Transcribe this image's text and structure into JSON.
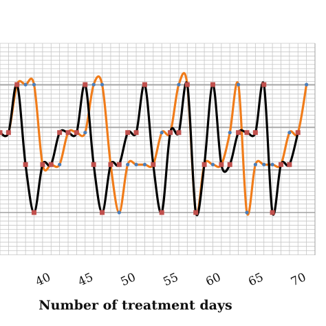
{
  "chart_data": {
    "type": "line",
    "title": "",
    "xlabel": "Number  of treatment days",
    "ylabel": "",
    "xlim": [
      35,
      72
    ],
    "ylim": [
      0,
      10
    ],
    "xticks": [
      40,
      45,
      50,
      55,
      60,
      65,
      70
    ],
    "tick_labels": [
      "40",
      "45",
      "50",
      "55",
      "60",
      "65",
      "70"
    ],
    "grid": true,
    "series": [
      {
        "color": "#f07c1a",
        "points": [
          [
            35,
            5
          ],
          [
            36,
            5
          ],
          [
            37,
            8
          ],
          [
            38,
            8
          ],
          [
            39,
            8
          ],
          [
            40,
            3
          ],
          [
            41,
            3
          ],
          [
            42,
            3
          ],
          [
            43,
            5
          ],
          [
            44,
            5
          ],
          [
            45,
            5
          ],
          [
            46,
            8
          ],
          [
            47,
            8
          ],
          [
            48,
            3
          ],
          [
            49,
            0
          ],
          [
            50,
            3
          ],
          [
            51,
            3
          ],
          [
            52,
            3
          ],
          [
            53,
            3
          ],
          [
            54,
            5
          ],
          [
            55,
            5
          ],
          [
            56,
            8
          ],
          [
            57,
            8
          ],
          [
            58,
            0
          ],
          [
            59,
            3
          ],
          [
            60,
            3
          ],
          [
            61,
            3
          ],
          [
            62,
            5
          ],
          [
            63,
            8
          ],
          [
            64,
            0
          ],
          [
            65,
            3
          ],
          [
            66,
            3
          ],
          [
            67,
            3
          ],
          [
            68,
            3
          ],
          [
            69,
            5
          ],
          [
            70,
            5
          ],
          [
            71,
            8
          ]
        ]
      },
      {
        "color": "#000000",
        "points": [
          [
            35,
            5
          ],
          [
            36,
            5
          ],
          [
            37,
            8
          ],
          [
            38,
            3
          ],
          [
            39,
            0
          ],
          [
            40,
            3
          ],
          [
            41,
            3
          ],
          [
            42,
            5
          ],
          [
            43,
            5
          ],
          [
            44,
            5
          ],
          [
            45,
            8
          ],
          [
            46,
            3
          ],
          [
            47,
            0
          ],
          [
            48,
            3
          ],
          [
            49,
            3
          ],
          [
            50,
            5
          ],
          [
            51,
            5
          ],
          [
            52,
            8
          ],
          [
            53,
            3
          ],
          [
            54,
            0
          ],
          [
            55,
            5
          ],
          [
            56,
            5
          ],
          [
            57,
            8
          ],
          [
            58,
            0
          ],
          [
            59,
            3
          ],
          [
            60,
            8
          ],
          [
            61,
            3
          ],
          [
            62,
            3
          ],
          [
            63,
            5
          ],
          [
            64,
            5
          ],
          [
            65,
            5
          ],
          [
            66,
            8
          ],
          [
            67,
            0
          ],
          [
            68,
            3
          ],
          [
            69,
            3
          ],
          [
            70,
            5
          ]
        ]
      }
    ]
  }
}
